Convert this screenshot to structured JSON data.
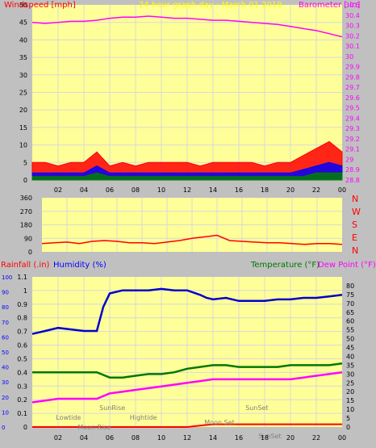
{
  "title": "24 hour graph day : March 01 2019",
  "colors": {
    "background": "#ffff99",
    "grid": "#d8d8d8",
    "wind": "#ff0000",
    "gust": "#ff0000",
    "wind_avg": "#0000ff",
    "wind_low": "#008000",
    "barometer": "#ff00ff",
    "direction": "#ff0000",
    "rain": "#ff0000",
    "humidity": "#0000cc",
    "temperature": "#007700",
    "dewpoint": "#ff00ff",
    "label_red": "#ff0000",
    "label_magenta": "#ff00ff",
    "label_blue": "#0000ff",
    "label_green": "#007700",
    "label_gray": "#808080"
  },
  "chart_data": [
    {
      "type": "line",
      "title": "24 hour graph day : March 01 2019",
      "ylabel_left": "Windspeed [mph]",
      "ylabel_right": "Barometer [.in]",
      "ylim_left": [
        0,
        50
      ],
      "ylim_right": [
        28.8,
        30.5
      ],
      "yticks_left": [
        "0",
        "5",
        "10",
        "15",
        "20",
        "25",
        "30",
        "35",
        "40",
        "45",
        "50"
      ],
      "yticks_right": [
        "28.8",
        "28.9",
        "29",
        "29.1",
        "29.2",
        "29.3",
        "29.4",
        "29.5",
        "29.6",
        "29.7",
        "29.8",
        "29.9",
        "30",
        "30.1",
        "30.2",
        "30.3",
        "30.4",
        "30.5"
      ],
      "xticks": [
        "02",
        "04",
        "06",
        "08",
        "10",
        "12",
        "14",
        "16",
        "18",
        "20",
        "22",
        "00"
      ],
      "grid": true,
      "series": [
        {
          "key": "barometer",
          "axis": "right",
          "x": [
            0,
            1,
            2,
            3,
            4,
            5,
            6,
            7,
            8,
            9,
            10,
            11,
            12,
            13,
            14,
            15,
            16,
            17,
            18,
            19,
            20,
            21,
            22,
            23,
            24
          ],
          "values": [
            30.33,
            30.32,
            30.33,
            30.34,
            30.34,
            30.35,
            30.37,
            30.38,
            30.38,
            30.39,
            30.38,
            30.37,
            30.37,
            30.36,
            30.35,
            30.35,
            30.34,
            30.33,
            30.32,
            30.31,
            30.29,
            30.27,
            30.25,
            30.22,
            30.19
          ]
        },
        {
          "key": "gust",
          "axis": "left",
          "x": [
            0,
            1,
            2,
            3,
            4,
            5,
            6,
            7,
            8,
            9,
            10,
            11,
            12,
            13,
            14,
            15,
            16,
            17,
            18,
            19,
            20,
            21,
            22,
            23,
            24
          ],
          "values": [
            5,
            5,
            4,
            5,
            5,
            8,
            4,
            5,
            4,
            5,
            5,
            5,
            5,
            4,
            5,
            5,
            5,
            5,
            4,
            5,
            5,
            7,
            9,
            11,
            8
          ]
        },
        {
          "key": "wind_avg",
          "axis": "left",
          "x": [
            0,
            1,
            2,
            3,
            4,
            5,
            6,
            7,
            8,
            9,
            10,
            11,
            12,
            13,
            14,
            15,
            16,
            17,
            18,
            19,
            20,
            21,
            22,
            23,
            24
          ],
          "values": [
            2,
            2,
            2,
            2,
            2,
            4,
            2,
            2,
            2,
            2,
            2,
            2,
            2,
            2,
            2,
            2,
            2,
            2,
            2,
            2,
            2,
            3,
            4,
            5,
            4
          ]
        },
        {
          "key": "wind_low",
          "axis": "left",
          "x": [
            0,
            1,
            2,
            3,
            4,
            5,
            6,
            7,
            8,
            9,
            10,
            11,
            12,
            13,
            14,
            15,
            16,
            17,
            18,
            19,
            20,
            21,
            22,
            23,
            24
          ],
          "values": [
            1,
            1,
            1,
            1,
            1,
            2,
            1,
            1,
            1,
            1,
            1,
            1,
            1,
            1,
            1,
            1,
            1,
            1,
            1,
            1,
            1,
            1,
            2,
            2,
            2
          ]
        }
      ]
    },
    {
      "type": "line",
      "ylim": [
        0,
        360
      ],
      "yticks": [
        "0",
        "90",
        "180",
        "270",
        "360"
      ],
      "compass": [
        "N",
        "W",
        "S",
        "E",
        "N"
      ],
      "xticks": [
        "02",
        "04",
        "06",
        "08",
        "10",
        "12",
        "14",
        "16",
        "18",
        "20",
        "22",
        "00"
      ],
      "series": [
        {
          "key": "direction",
          "x": [
            0,
            1,
            2,
            3,
            4,
            5,
            6,
            7,
            8,
            9,
            10,
            11,
            12,
            13,
            14,
            15,
            16,
            17,
            18,
            19,
            20,
            21,
            22,
            23,
            24
          ],
          "values": [
            55,
            60,
            65,
            55,
            70,
            75,
            70,
            60,
            60,
            55,
            65,
            75,
            90,
            100,
            110,
            75,
            70,
            65,
            60,
            60,
            55,
            50,
            55,
            55,
            50
          ]
        }
      ]
    },
    {
      "type": "line",
      "ylabel_left": "Rainfall (.in)",
      "ylabel_left2": "Humidity (%)",
      "ylabel_right": "Temperature (°F)",
      "ylabel_right2": "Dew Point (°F)",
      "ylim_rain": [
        0,
        1.1
      ],
      "ylim_humidity": [
        0,
        100
      ],
      "ylim_temp": [
        0,
        85
      ],
      "yticks_rain": [
        "0",
        "0.1",
        "0.2",
        "0.3",
        "0.4",
        "0.5",
        "0.6",
        "0.7",
        "0.8",
        "0.9",
        "1",
        "1.1"
      ],
      "yticks_humidity": [
        "0",
        "10",
        "20",
        "30",
        "40",
        "50",
        "60",
        "70",
        "80",
        "90",
        "100"
      ],
      "yticks_temp": [
        "0",
        "5",
        "10",
        "15",
        "20",
        "25",
        "30",
        "35",
        "40",
        "45",
        "50",
        "55",
        "60",
        "65",
        "70",
        "75",
        "80"
      ],
      "xticks": [
        "02",
        "04",
        "06",
        "08",
        "10",
        "12",
        "14",
        "16",
        "18",
        "20",
        "22",
        "00"
      ],
      "annotations": [
        {
          "text": "Lowtide",
          "x": 2.8
        },
        {
          "text": "Moon Rise",
          "x": 4.8
        },
        {
          "text": "SunRise",
          "x": 6.2
        },
        {
          "text": "Hightide",
          "x": 8.6
        },
        {
          "text": "Moon Set",
          "x": 14.5
        },
        {
          "text": "SunSet",
          "x": 17.4
        },
        {
          "text": "SunSet",
          "x": 18.4
        }
      ],
      "series": [
        {
          "key": "humidity",
          "x": [
            0,
            1,
            2,
            3,
            4,
            5,
            5.5,
            6,
            7,
            8,
            9,
            10,
            11,
            12,
            13,
            13.5,
            14,
            15,
            16,
            17,
            18,
            19,
            20,
            21,
            22,
            23,
            24
          ],
          "values": [
            62,
            64,
            66,
            65,
            64,
            64,
            80,
            89,
            91,
            91,
            91,
            92,
            91,
            91,
            88,
            86,
            85,
            86,
            84,
            84,
            84,
            85,
            85,
            86,
            86,
            87,
            88
          ]
        },
        {
          "key": "temperature",
          "x": [
            0,
            1,
            2,
            3,
            4,
            5,
            6,
            7,
            8,
            9,
            10,
            11,
            12,
            13,
            14,
            15,
            16,
            17,
            18,
            19,
            20,
            21,
            22,
            23,
            24
          ],
          "values": [
            31,
            31,
            31,
            31,
            31,
            31,
            28,
            28,
            29,
            30,
            30,
            31,
            33,
            34,
            35,
            35,
            34,
            34,
            34,
            34,
            35,
            35,
            35,
            35,
            36
          ]
        },
        {
          "key": "dewpoint",
          "x": [
            0,
            1,
            2,
            3,
            4,
            5,
            6,
            7,
            8,
            9,
            10,
            11,
            12,
            13,
            14,
            15,
            16,
            17,
            18,
            19,
            20,
            21,
            22,
            23,
            24
          ],
          "values": [
            14,
            15,
            16,
            16,
            16,
            16,
            19,
            20,
            21,
            22,
            23,
            24,
            25,
            26,
            27,
            27,
            27,
            27,
            27,
            27,
            27,
            28,
            29,
            30,
            31
          ]
        },
        {
          "key": "rain",
          "x": [
            0,
            1,
            2,
            3,
            4,
            5,
            6,
            7,
            8,
            9,
            10,
            11,
            12,
            13,
            14,
            15,
            16,
            17,
            18,
            19,
            20,
            21,
            22,
            23,
            24
          ],
          "values": [
            0,
            0,
            0,
            0,
            0,
            0,
            0,
            0,
            0,
            0,
            0,
            0,
            0,
            0.01,
            0.02,
            0.02,
            0.02,
            0.02,
            0.02,
            0.02,
            0.02,
            0.02,
            0.02,
            0.02,
            0.02
          ]
        }
      ]
    }
  ]
}
